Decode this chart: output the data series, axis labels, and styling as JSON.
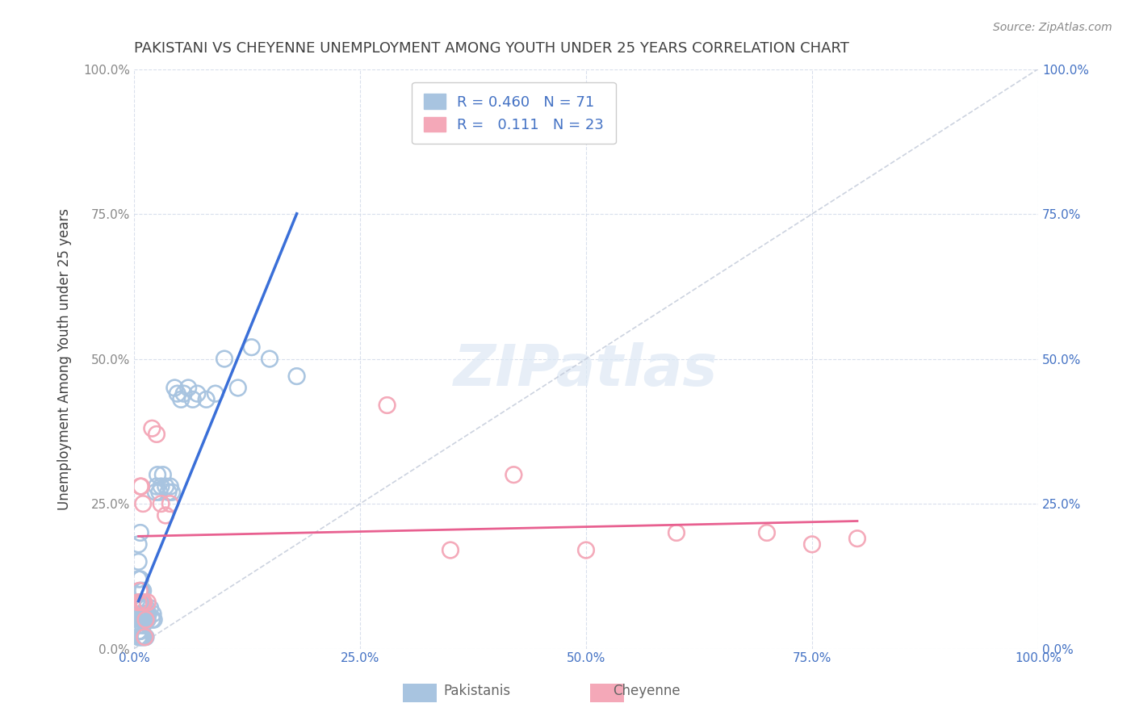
{
  "title": "PAKISTANI VS CHEYENNE UNEMPLOYMENT AMONG YOUTH UNDER 25 YEARS CORRELATION CHART",
  "source": "Source: ZipAtlas.com",
  "xlabel": "",
  "ylabel": "Unemployment Among Youth under 25 years",
  "xlim": [
    0.0,
    1.0
  ],
  "ylim": [
    0.0,
    1.0
  ],
  "xticks": [
    0.0,
    0.25,
    0.5,
    0.75,
    1.0
  ],
  "yticks": [
    0.0,
    0.25,
    0.5,
    0.75,
    1.0
  ],
  "xticklabels": [
    "0.0%",
    "25.0%",
    "50.0%",
    "75.0%",
    "100.0%"
  ],
  "yticklabels": [
    "0.0%",
    "25.0%",
    "50.0%",
    "75.0%",
    "100.0%"
  ],
  "right_yticklabels": [
    "0.0%",
    "25.0%",
    "50.0%",
    "75.0%",
    "100.0%"
  ],
  "legend_r_pakistani": "0.460",
  "legend_n_pakistani": "71",
  "legend_r_cheyenne": "0.111",
  "legend_n_cheyenne": "23",
  "pakistani_color": "#a8c4e0",
  "cheyenne_color": "#f4a8b8",
  "pakistani_line_color": "#3a6fd8",
  "cheyenne_line_color": "#e86090",
  "diagonal_color": "#c0c8d8",
  "watermark": "ZIPatlas",
  "pakistani_x": [
    0.005,
    0.005,
    0.005,
    0.005,
    0.007,
    0.007,
    0.007,
    0.007,
    0.007,
    0.008,
    0.008,
    0.008,
    0.008,
    0.009,
    0.009,
    0.009,
    0.01,
    0.01,
    0.01,
    0.01,
    0.01,
    0.01,
    0.011,
    0.011,
    0.012,
    0.012,
    0.013,
    0.014,
    0.014,
    0.015,
    0.016,
    0.018,
    0.02,
    0.021,
    0.022,
    0.024,
    0.025,
    0.026,
    0.028,
    0.03,
    0.032,
    0.035,
    0.038,
    0.04,
    0.042,
    0.045,
    0.048,
    0.052,
    0.055,
    0.06,
    0.065,
    0.07,
    0.08,
    0.09,
    0.1,
    0.115,
    0.13,
    0.15,
    0.18,
    0.005,
    0.005,
    0.005,
    0.006,
    0.006,
    0.007,
    0.007,
    0.008,
    0.009,
    0.01,
    0.011,
    0.013
  ],
  "pakistani_y": [
    0.08,
    0.12,
    0.15,
    0.18,
    0.05,
    0.08,
    0.1,
    0.12,
    0.2,
    0.06,
    0.07,
    0.08,
    0.1,
    0.05,
    0.07,
    0.08,
    0.04,
    0.05,
    0.06,
    0.07,
    0.08,
    0.1,
    0.05,
    0.06,
    0.05,
    0.06,
    0.05,
    0.06,
    0.07,
    0.05,
    0.06,
    0.07,
    0.05,
    0.06,
    0.05,
    0.27,
    0.28,
    0.3,
    0.27,
    0.28,
    0.3,
    0.28,
    0.27,
    0.28,
    0.27,
    0.45,
    0.44,
    0.43,
    0.44,
    0.45,
    0.43,
    0.44,
    0.43,
    0.44,
    0.5,
    0.45,
    0.52,
    0.5,
    0.47,
    0.02,
    0.03,
    0.04,
    0.02,
    0.03,
    0.02,
    0.03,
    0.02,
    0.02,
    0.02,
    0.02,
    0.02
  ],
  "cheyenne_x": [
    0.005,
    0.006,
    0.007,
    0.008,
    0.009,
    0.01,
    0.011,
    0.012,
    0.013,
    0.015,
    0.02,
    0.025,
    0.03,
    0.035,
    0.04,
    0.28,
    0.35,
    0.42,
    0.5,
    0.6,
    0.7,
    0.75,
    0.8
  ],
  "cheyenne_y": [
    0.08,
    0.1,
    0.28,
    0.28,
    0.08,
    0.25,
    0.08,
    0.02,
    0.05,
    0.08,
    0.38,
    0.37,
    0.25,
    0.23,
    0.25,
    0.42,
    0.17,
    0.3,
    0.17,
    0.2,
    0.2,
    0.18,
    0.19
  ],
  "background_color": "#ffffff",
  "grid_color": "#d0d8e8",
  "title_color": "#404040",
  "axis_label_color": "#404040",
  "tick_color_x": "#4472c4",
  "tick_color_y_right": "#4472c4"
}
